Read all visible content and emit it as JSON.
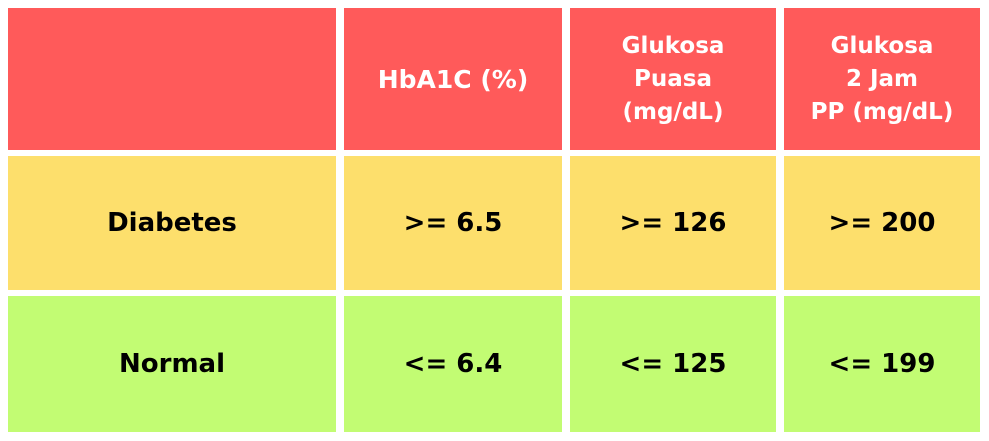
{
  "colors": {
    "header_bg": "#FF5A5A",
    "diabetes_bg": "#FDDF6C",
    "normal_bg": "#C2FC73",
    "header_text": "#FFFFFF",
    "body_text": "#000000"
  },
  "table": {
    "headers": [
      "",
      "HbA1C (%)",
      "Glukosa\nPuasa\n(mg/dL)",
      "Glukosa\n2 Jam\nPP (mg/dL)"
    ],
    "rows": [
      {
        "label": "Diabetes",
        "hba1c": ">= 6.5",
        "glukosa_puasa": ">= 126",
        "glukosa_2jam": ">= 200"
      },
      {
        "label": "Normal",
        "hba1c": "<= 6.4",
        "glukosa_puasa": "<= 125",
        "glukosa_2jam": "<= 199"
      }
    ]
  }
}
